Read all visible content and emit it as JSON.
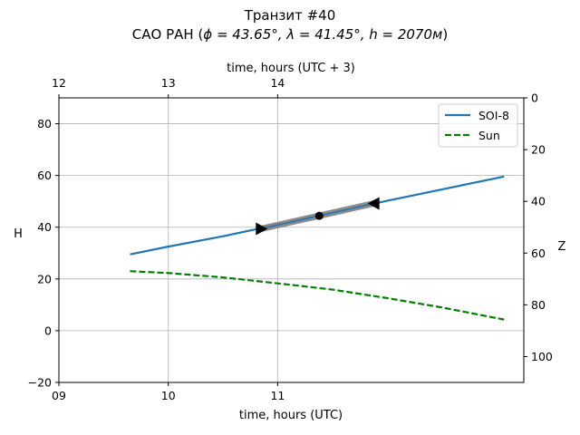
{
  "chart_data": {
    "type": "line",
    "title": "Транзит #40",
    "subtitle_prefix": "САО РАН (",
    "subtitle_math": "ϕ = 43.65°, λ = 41.45°, h = 2070м",
    "subtitle_suffix": ")",
    "xlabel": "time, hours (UTC)",
    "x2label": "time, hours (UTC + 3)",
    "ylabel": "H",
    "y2label": "Z",
    "xlim": [
      9.0,
      13.25
    ],
    "ylim": [
      -20,
      90
    ],
    "xticks": [
      9,
      10,
      11
    ],
    "xtick_labels": [
      "09",
      "10",
      "11"
    ],
    "x2ticks": [
      9,
      10,
      11
    ],
    "x2tick_labels": [
      "12",
      "13",
      "14"
    ],
    "yticks": [
      -20,
      0,
      20,
      40,
      60,
      80
    ],
    "y2ticks": [
      0,
      20,
      40,
      60,
      80,
      100
    ],
    "grid": true,
    "legend_position": "upper-right",
    "series": [
      {
        "name": "SOI-8",
        "color": "#1f77b4",
        "style": "solid",
        "x": [
          9.65,
          10.0,
          10.5,
          11.0,
          11.5,
          12.0,
          12.5,
          13.07
        ],
        "y": [
          29.5,
          32.5,
          36.5,
          41.0,
          45.6,
          50.2,
          54.6,
          59.6
        ]
      },
      {
        "name": "Sun",
        "color": "#008000",
        "style": "dashed",
        "x": [
          9.65,
          10.0,
          10.5,
          11.0,
          11.5,
          12.0,
          12.5,
          13.07
        ],
        "y": [
          23.0,
          22.3,
          20.6,
          18.3,
          15.9,
          12.6,
          9.0,
          4.3
        ]
      }
    ],
    "transit": {
      "color": "#7f7f7f",
      "x": [
        10.85,
        11.88
      ],
      "y": [
        39.4,
        49.2
      ],
      "ingress": {
        "x": 10.85,
        "y": 39.4
      },
      "mid": {
        "x": 11.38,
        "y": 44.4
      },
      "egress": {
        "x": 11.88,
        "y": 49.2
      }
    }
  }
}
